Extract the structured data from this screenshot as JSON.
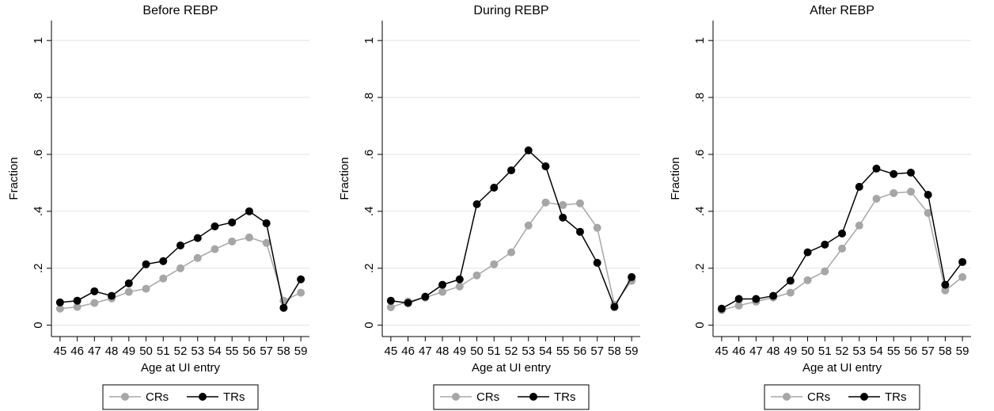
{
  "chart_data": [
    {
      "type": "line",
      "title": "Before REBP",
      "x_label": "Age at UI entry",
      "y_label": "Fraction",
      "x": [
        45,
        46,
        47,
        48,
        49,
        50,
        51,
        52,
        53,
        54,
        55,
        56,
        57,
        58,
        59
      ],
      "xlim": [
        44.5,
        59.5
      ],
      "xticks": [
        45,
        46,
        47,
        48,
        49,
        50,
        51,
        52,
        53,
        54,
        55,
        56,
        57,
        58,
        59
      ],
      "ylim": [
        -0.04,
        1.07
      ],
      "yticks": [
        0,
        {
          "value": 0.2,
          "label": ".2"
        },
        {
          "value": 0.4,
          "label": ".4"
        },
        {
          "value": 0.6,
          "label": ".6"
        },
        {
          "value": 0.8,
          "label": ".8"
        },
        1
      ],
      "grid": true,
      "legend": "bottom",
      "series": [
        {
          "name": "CRs",
          "color": "#a6a6a6",
          "values": [
            0.058,
            0.064,
            0.078,
            0.094,
            0.117,
            0.128,
            0.164,
            0.2,
            0.236,
            0.267,
            0.294,
            0.308,
            0.289,
            0.086,
            0.114
          ]
        },
        {
          "name": "TRs",
          "color": "#000000",
          "values": [
            0.08,
            0.086,
            0.119,
            0.103,
            0.147,
            0.214,
            0.225,
            0.28,
            0.306,
            0.347,
            0.361,
            0.4,
            0.358,
            0.061,
            0.161
          ]
        }
      ]
    },
    {
      "type": "line",
      "title": "During REBP",
      "x_label": "Age at UI entry",
      "y_label": "Fraction",
      "x": [
        45,
        46,
        47,
        48,
        49,
        50,
        51,
        52,
        53,
        54,
        55,
        56,
        57,
        58,
        59
      ],
      "xlim": [
        44.5,
        59.5
      ],
      "xticks": [
        45,
        46,
        47,
        48,
        49,
        50,
        51,
        52,
        53,
        54,
        55,
        56,
        57,
        58,
        59
      ],
      "ylim": [
        -0.04,
        1.07
      ],
      "yticks": [
        0,
        {
          "value": 0.2,
          "label": ".2"
        },
        {
          "value": 0.4,
          "label": ".4"
        },
        {
          "value": 0.6,
          "label": ".6"
        },
        {
          "value": 0.8,
          "label": ".8"
        },
        1
      ],
      "grid": true,
      "legend": "bottom",
      "series": [
        {
          "name": "CRs",
          "color": "#a6a6a6",
          "values": [
            0.063,
            0.083,
            0.097,
            0.117,
            0.136,
            0.175,
            0.214,
            0.256,
            0.35,
            0.431,
            0.422,
            0.428,
            0.342,
            0.072,
            0.156
          ]
        },
        {
          "name": "TRs",
          "color": "#000000",
          "values": [
            0.086,
            0.078,
            0.1,
            0.142,
            0.161,
            0.425,
            0.483,
            0.544,
            0.614,
            0.558,
            0.378,
            0.328,
            0.219,
            0.064,
            0.169
          ]
        }
      ]
    },
    {
      "type": "line",
      "title": "After REBP",
      "x_label": "Age at UI entry",
      "y_label": "Fraction",
      "x": [
        45,
        46,
        47,
        48,
        49,
        50,
        51,
        52,
        53,
        54,
        55,
        56,
        57,
        58,
        59
      ],
      "xlim": [
        44.5,
        59.5
      ],
      "xticks": [
        45,
        46,
        47,
        48,
        49,
        50,
        51,
        52,
        53,
        54,
        55,
        56,
        57,
        58,
        59
      ],
      "ylim": [
        -0.04,
        1.07
      ],
      "yticks": [
        0,
        {
          "value": 0.2,
          "label": ".2"
        },
        {
          "value": 0.4,
          "label": ".4"
        },
        {
          "value": 0.6,
          "label": ".6"
        },
        {
          "value": 0.8,
          "label": ".8"
        },
        1
      ],
      "grid": true,
      "legend": "bottom",
      "series": [
        {
          "name": "CRs",
          "color": "#a6a6a6",
          "values": [
            0.053,
            0.069,
            0.083,
            0.097,
            0.114,
            0.158,
            0.189,
            0.269,
            0.35,
            0.444,
            0.464,
            0.469,
            0.394,
            0.122,
            0.169
          ]
        },
        {
          "name": "TRs",
          "color": "#000000",
          "values": [
            0.058,
            0.092,
            0.092,
            0.103,
            0.156,
            0.256,
            0.283,
            0.322,
            0.486,
            0.55,
            0.531,
            0.536,
            0.458,
            0.142,
            0.222
          ]
        }
      ]
    }
  ]
}
